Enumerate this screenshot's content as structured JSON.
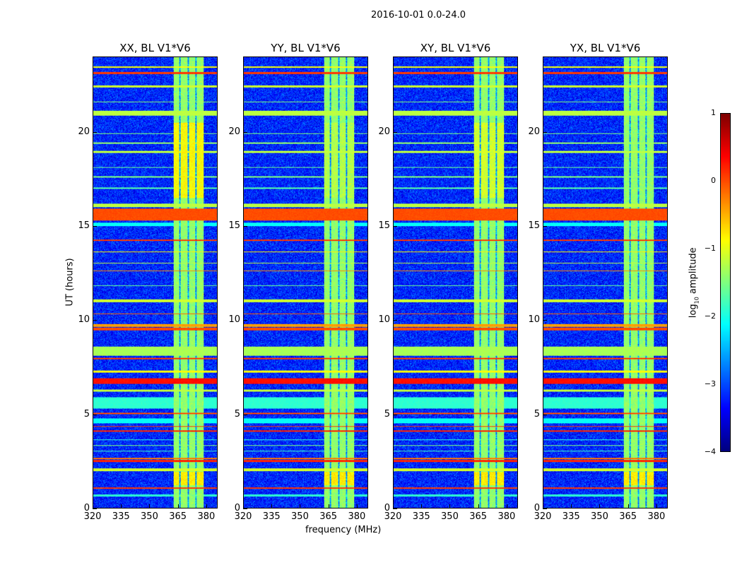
{
  "figure_title": "2016-10-01 0.0-24.0",
  "chart_data": {
    "type": "heatmap",
    "title": "2016-10-01 0.0-24.0",
    "xlabel": "frequency (MHz)",
    "ylabel": "UT (hours)",
    "xlim": [
      320,
      386
    ],
    "ylim": [
      0,
      24
    ],
    "xticks": [
      320,
      335,
      350,
      365,
      380
    ],
    "yticks": [
      0,
      5,
      10,
      15,
      20
    ],
    "panels": [
      {
        "title": "XX, BL V1*V6",
        "block_boost": 0.35
      },
      {
        "title": "YY, BL V1*V6",
        "block_boost": 0.1
      },
      {
        "title": "XY, BL V1*V6",
        "block_boost": 0.2
      },
      {
        "title": "YX, BL V1*V6",
        "block_boost": 0.0
      }
    ],
    "background_log_amplitude": -3.2,
    "channel_blocks_mhz": [
      [
        363,
        366
      ],
      [
        366.6,
        370.2
      ],
      [
        371,
        374.3
      ],
      [
        375.2,
        379
      ]
    ],
    "block_log_amplitude": -1.4,
    "rfi_time_bands": [
      {
        "t": [
          0.6,
          0.7
        ],
        "v": -1.9
      },
      {
        "t": [
          1.0,
          1.1
        ],
        "v": 0.1
      },
      {
        "t": [
          1.95,
          2.1
        ],
        "v": -1.1
      },
      {
        "t": [
          2.45,
          2.55
        ],
        "v": 0.2
      },
      {
        "t": [
          2.6,
          2.65
        ],
        "v": -0.2
      },
      {
        "t": [
          3.0,
          3.05
        ],
        "v": -1.8
      },
      {
        "t": [
          3.3,
          3.35
        ],
        "v": -1.5
      },
      {
        "t": [
          3.6,
          3.65
        ],
        "v": -1.9
      },
      {
        "t": [
          4.05,
          4.12
        ],
        "v": 0.2
      },
      {
        "t": [
          4.3,
          4.36
        ],
        "v": 0.1
      },
      {
        "t": [
          4.5,
          4.75
        ],
        "v": -2.1
      },
      {
        "t": [
          5.0,
          5.07
        ],
        "v": 0.0
      },
      {
        "t": [
          5.3,
          5.9
        ],
        "v": -1.9
      },
      {
        "t": [
          6.2,
          6.3
        ],
        "v": -1.2
      },
      {
        "t": [
          6.6,
          6.9
        ],
        "v": 0.3
      },
      {
        "t": [
          7.2,
          7.3
        ],
        "v": -0.9
      },
      {
        "t": [
          7.9,
          8.0
        ],
        "v": 0.1
      },
      {
        "t": [
          8.1,
          8.6
        ],
        "v": -1.3
      },
      {
        "t": [
          9.45,
          9.6
        ],
        "v": 0.0
      },
      {
        "t": [
          9.65,
          9.8
        ],
        "v": -0.4
      },
      {
        "t": [
          10.3,
          10.36
        ],
        "v": -0.1
      },
      {
        "t": [
          10.95,
          11.1
        ],
        "v": -1.1
      },
      {
        "t": [
          11.8,
          11.85
        ],
        "v": -1.6
      },
      {
        "t": [
          12.6,
          12.65
        ],
        "v": -0.3
      },
      {
        "t": [
          13.0,
          13.05
        ],
        "v": -1.2
      },
      {
        "t": [
          13.6,
          13.65
        ],
        "v": -0.8
      },
      {
        "t": [
          14.2,
          14.3
        ],
        "v": 0.1
      },
      {
        "t": [
          15.0,
          15.2
        ],
        "v": -2.1
      },
      {
        "t": [
          15.3,
          15.95
        ],
        "v": 0.0
      },
      {
        "t": [
          16.0,
          16.2
        ],
        "v": -1.2
      },
      {
        "t": [
          17.0,
          17.05
        ],
        "v": -1.7
      },
      {
        "t": [
          17.6,
          17.65
        ],
        "v": -1.5
      },
      {
        "t": [
          18.1,
          18.15
        ],
        "v": -1.6
      },
      {
        "t": [
          18.9,
          19.0
        ],
        "v": -1.2
      },
      {
        "t": [
          19.4,
          19.45
        ],
        "v": -1.4
      },
      {
        "t": [
          19.9,
          19.95
        ],
        "v": -1.5
      },
      {
        "t": [
          20.9,
          21.15
        ],
        "v": -1.2
      },
      {
        "t": [
          21.6,
          21.65
        ],
        "v": -1.5
      },
      {
        "t": [
          22.4,
          22.5
        ],
        "v": -1.1
      },
      {
        "t": [
          23.1,
          23.2
        ],
        "v": 0.1
      },
      {
        "t": [
          23.45,
          23.52
        ],
        "v": -0.9
      }
    ],
    "colorbar": {
      "label": "log10 amplitude",
      "label_main": "log",
      "label_sub": "10",
      "label_rest": " amplitude",
      "range": [
        -4,
        1
      ],
      "ticks": [
        "1",
        "0",
        "−1",
        "−2",
        "−3",
        "−4"
      ],
      "colormap": "jet"
    }
  }
}
